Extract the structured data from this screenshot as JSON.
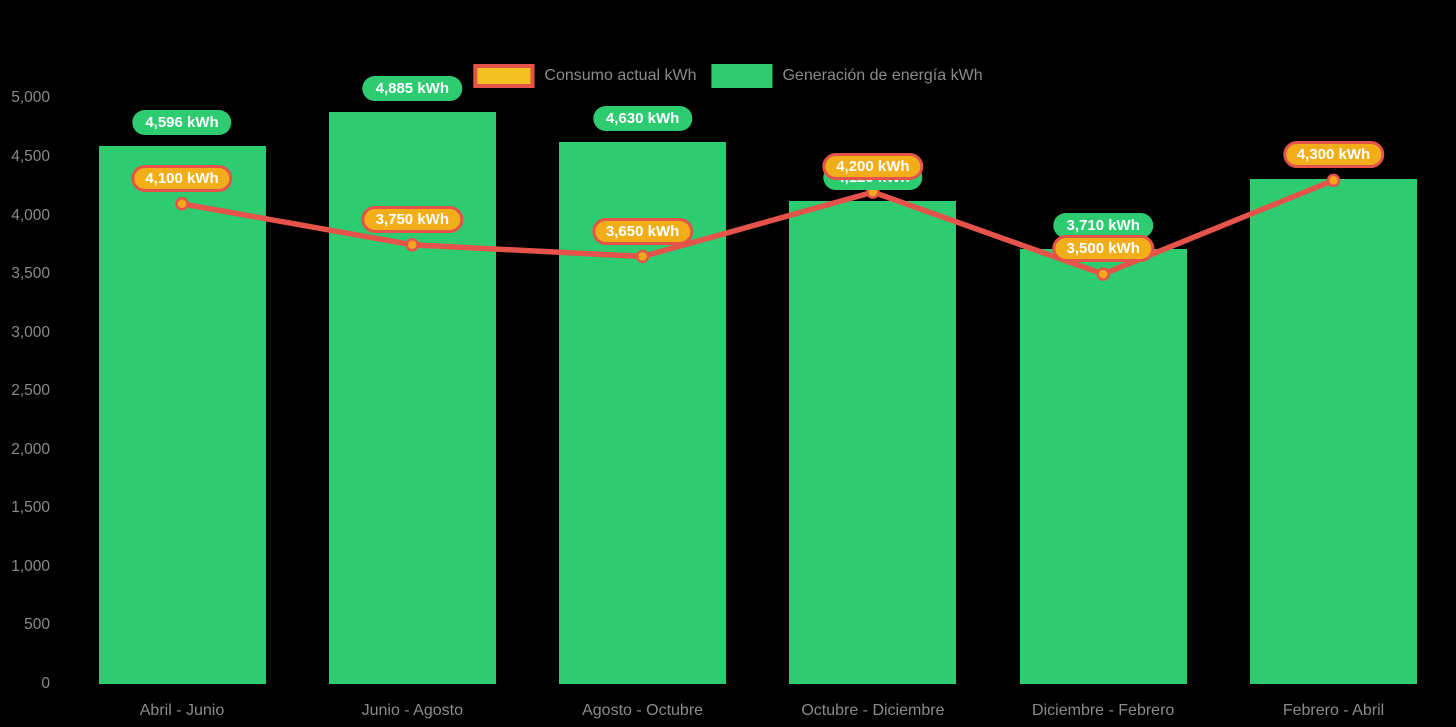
{
  "chart_data": {
    "type": "bar",
    "title": "",
    "xlabel": "",
    "ylabel": "",
    "categories": [
      "Abril - Junio",
      "Junio - Agosto",
      "Agosto - Octubre",
      "Octubre - Diciembre",
      "Diciembre - Febrero",
      "Febrero - Abril"
    ],
    "series": [
      {
        "name": "Generación de energía kWh",
        "type": "bar",
        "color": "#2ecc71",
        "values": [
          4596,
          4885,
          4630,
          4120,
          3710,
          4310
        ],
        "point_labels": [
          "4,596 kWh",
          "4,885 kWh",
          "4,630 kWh",
          "4,120 kWh",
          "3,710 kWh",
          "4,310 kWh"
        ]
      },
      {
        "name": "Consumo actual kWh",
        "type": "line",
        "color": "#e5534b",
        "marker_color": "#f3a81c",
        "values": [
          4100,
          3750,
          3650,
          4200,
          3500,
          4300
        ],
        "point_labels": [
          "4,100 kWh",
          "3,750 kWh",
          "3,650 kWh",
          "4,200 kWh",
          "3,500 kWh",
          "4,300 kWh"
        ]
      }
    ],
    "ylim": [
      0,
      5000
    ],
    "y_tick_step": 500,
    "y_tick_labels": [
      "0",
      "500",
      "1,000",
      "1,500",
      "2,000",
      "2,500",
      "3,000",
      "3,500",
      "4,000",
      "4,500",
      "5,000"
    ],
    "grid": false,
    "legend_position": "top-center"
  },
  "legend": {
    "items": [
      {
        "label": "Consumo actual kWh",
        "swatch_color": "#f0c11f",
        "swatch_border": "#e5534b"
      },
      {
        "label": "Generación de energía kWh",
        "swatch_color": "#2ecc71",
        "swatch_border": ""
      }
    ]
  },
  "colors": {
    "background": "#000000",
    "bar": "#2ecc71",
    "line": "#e5534b",
    "marker_fill": "#f3a81c",
    "bar_label_bg": "#2ecc71",
    "line_label_bg": "#f2ae18",
    "line_label_border": "#e5534b",
    "axis_text": "#8b8b8b",
    "label_text": "#ffffff"
  }
}
